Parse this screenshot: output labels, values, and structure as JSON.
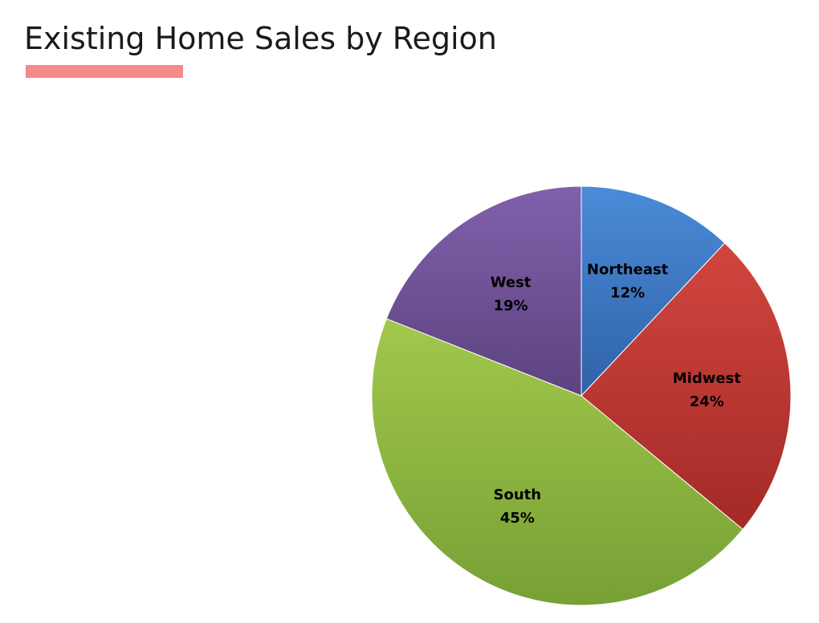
{
  "page": {
    "title": "Existing Home Sales by Region",
    "accent_color": "#f48a8a"
  },
  "chart_data": {
    "type": "pie",
    "title": "",
    "start_angle_deg": 0,
    "direction": "clockwise",
    "slices": [
      {
        "label": "Northeast",
        "value": 12,
        "value_label": "12%",
        "color_light": "#4b8bd8",
        "color_dark": "#2f62a8"
      },
      {
        "label": "Midwest",
        "value": 24,
        "value_label": "24%",
        "color_light": "#d2453f",
        "color_dark": "#a32a27"
      },
      {
        "label": "South",
        "value": 45,
        "value_label": "45%",
        "color_light": "#a2c84c",
        "color_dark": "#77a035"
      },
      {
        "label": "West",
        "value": 19,
        "value_label": "19%",
        "color_light": "#8160ac",
        "color_dark": "#5c437f"
      }
    ],
    "legend": "none"
  }
}
